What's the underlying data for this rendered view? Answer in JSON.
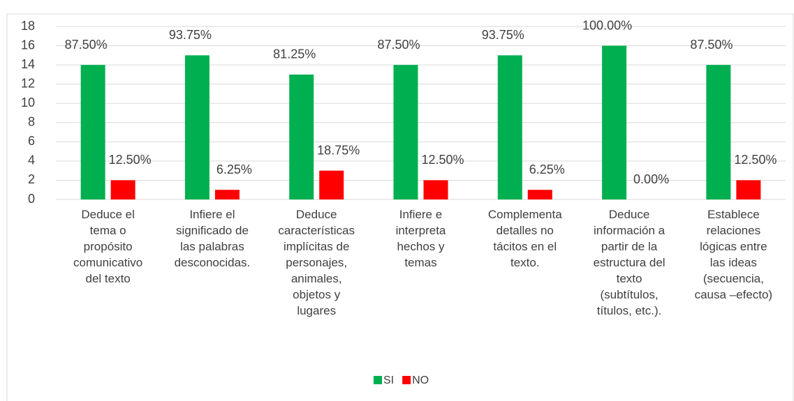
{
  "chart_data": {
    "type": "bar",
    "categories": [
      "Deduce el\ntema o\npropósito\ncomunicativo\ndel texto",
      "Infiere el\nsignificado de\nlas palabras\ndesconocidas.",
      "Deduce\ncaracterísticas\nimplícitas de\npersonajes,\nanimales,\nobjetos y\nlugares",
      "Infiere e\ninterpreta\nhechos y\ntemas",
      "Complementa\ndetalles no\ntácitos en el\ntexto.",
      "Deduce\ninformación a\npartir de la\nestructura del\ntexto\n(subtítulos,\ntítulos, etc.).",
      "Establece\nrelaciones\nlógicas entre\nlas ideas\n(secuencia,\ncausa –efecto)"
    ],
    "series": [
      {
        "name": "SI",
        "color": "#00b050",
        "values": [
          14,
          15,
          13,
          14,
          15,
          16,
          14
        ],
        "value_labels": [
          "87.50%",
          "93.75%",
          "81.25%",
          "87.50%",
          "93.75%",
          "100.00%",
          "87.50%"
        ]
      },
      {
        "name": "NO",
        "color": "#ff0000",
        "values": [
          2,
          1,
          3,
          2,
          1,
          0,
          2
        ],
        "value_labels": [
          "12.50%",
          "6.25%",
          "18.75%",
          "12.50%",
          "6.25%",
          "0.00%",
          "12.50%"
        ]
      }
    ],
    "ylim": [
      0,
      18
    ],
    "yticks": [
      0,
      2,
      4,
      6,
      8,
      10,
      12,
      14,
      16,
      18
    ],
    "grid": true,
    "legend": "bottom"
  }
}
